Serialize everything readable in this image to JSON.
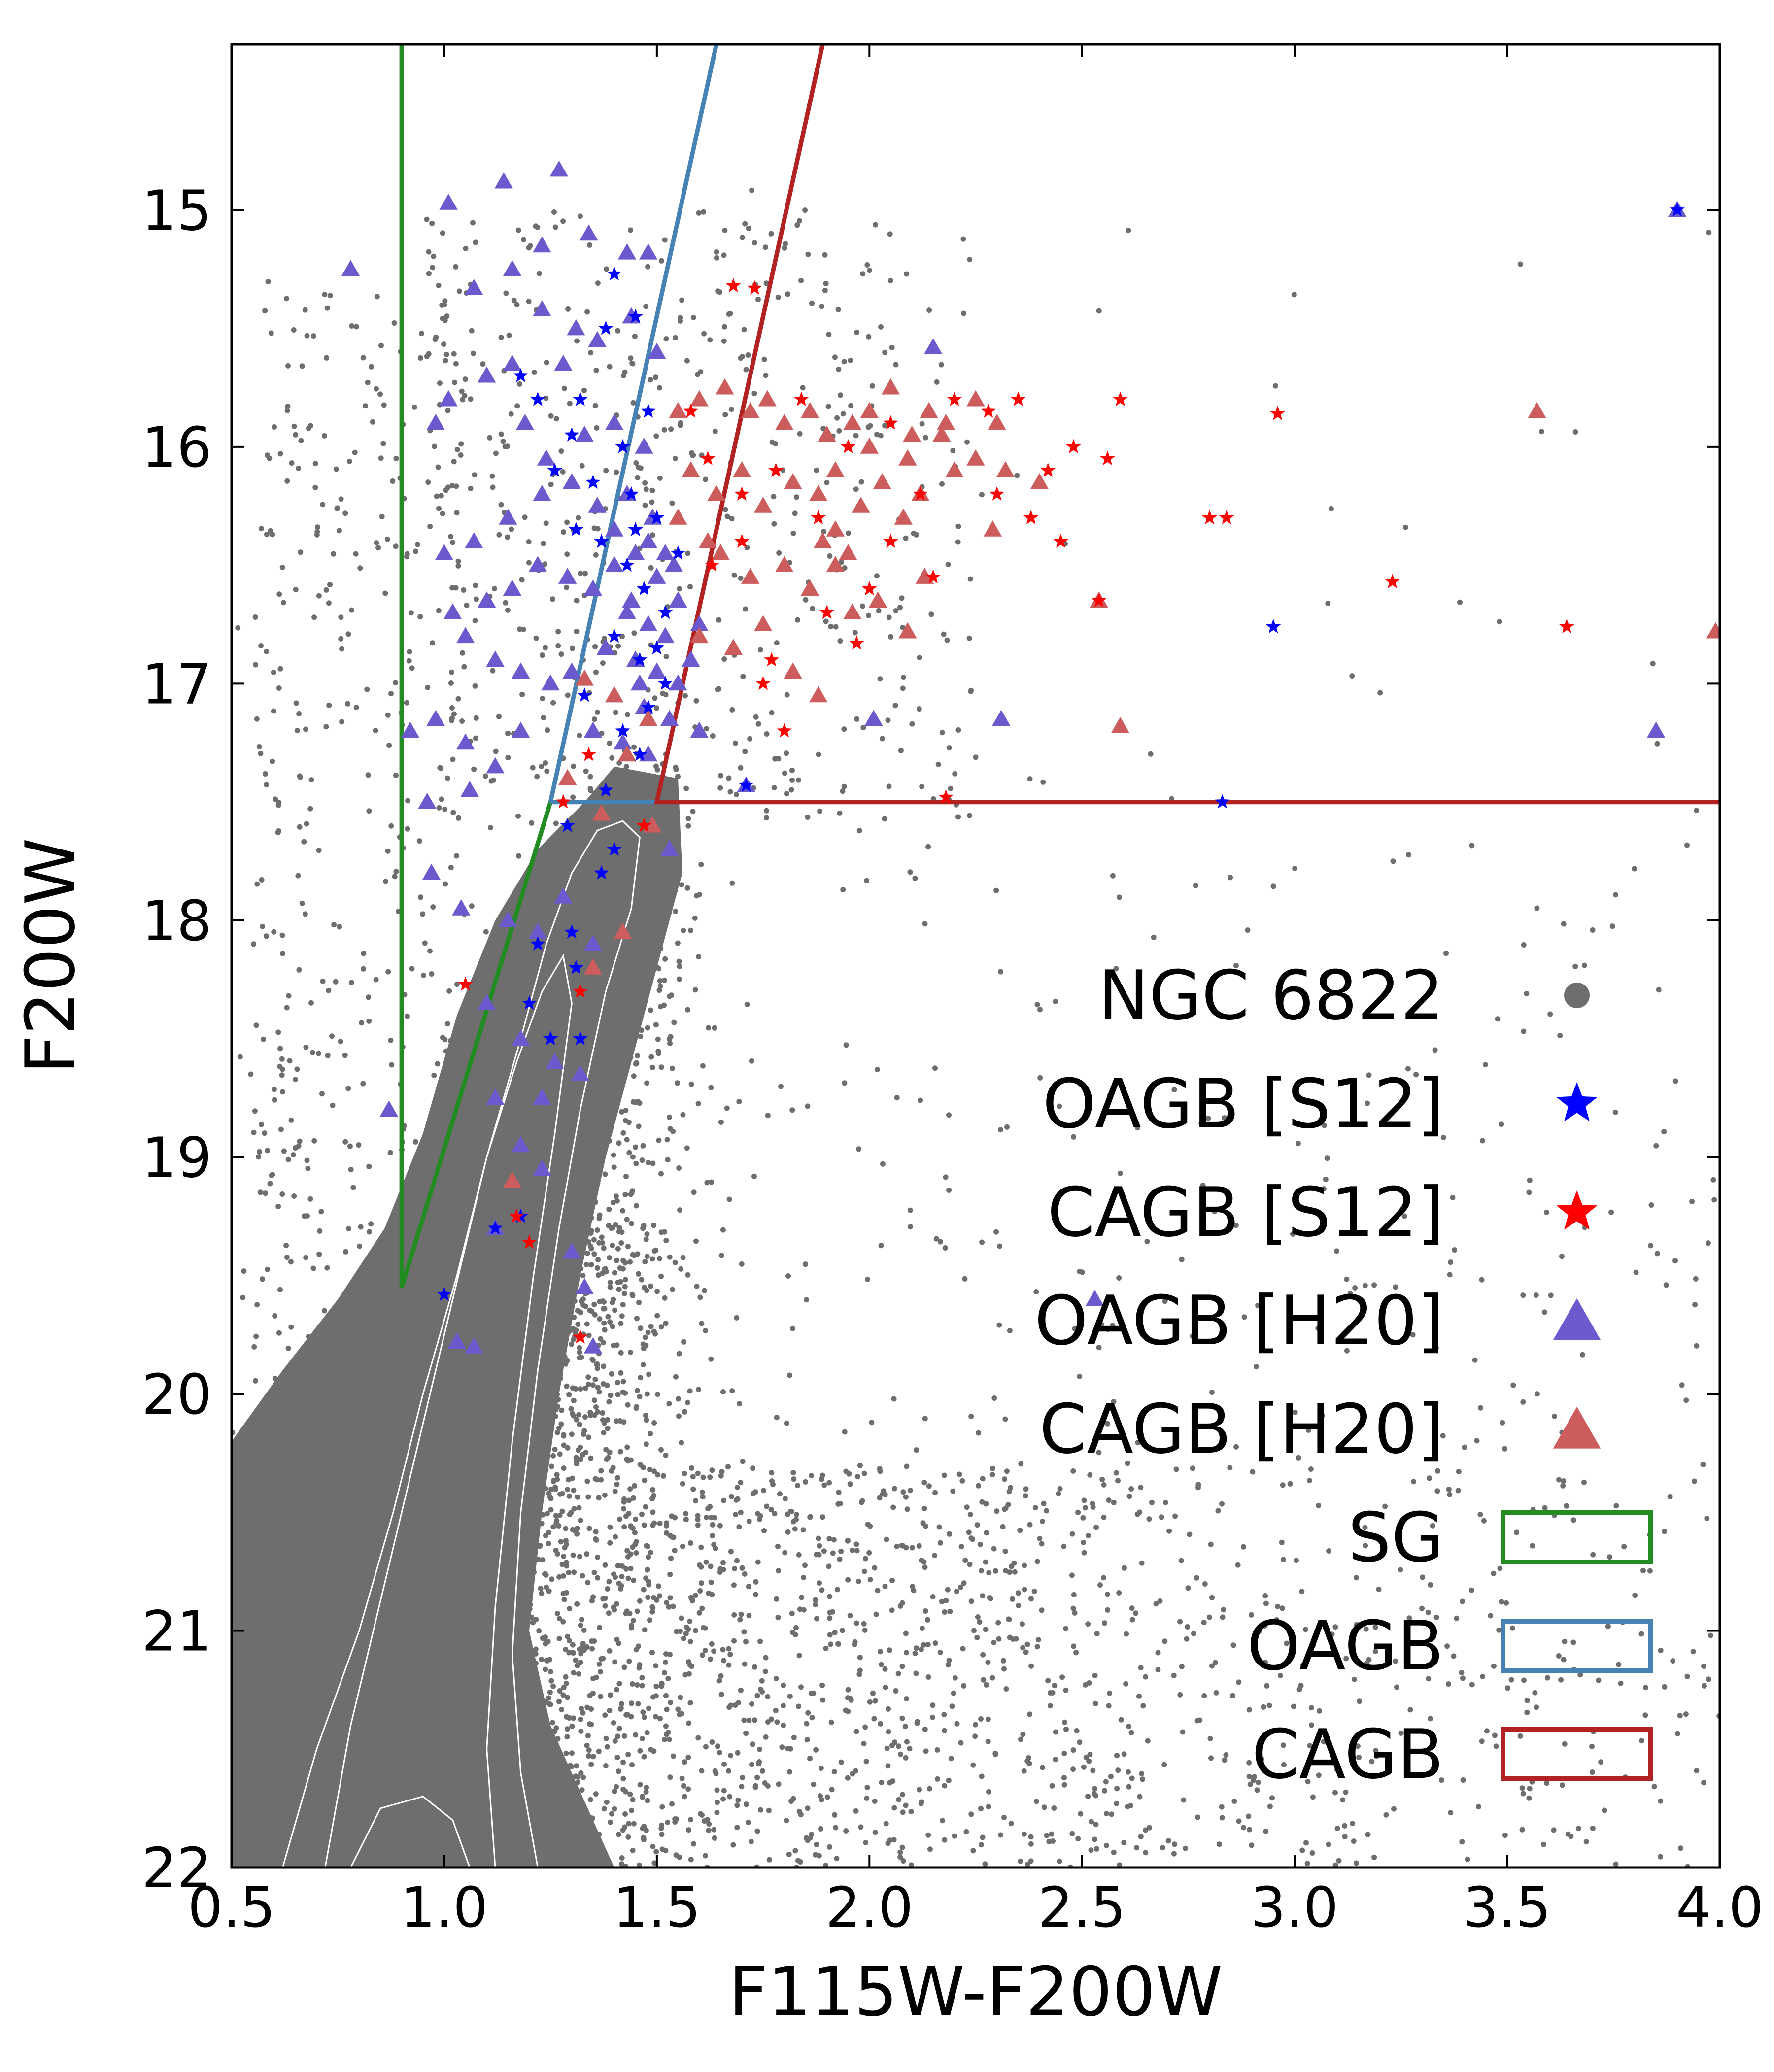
{
  "chart_data": {
    "type": "scatter",
    "title": "",
    "xlabel": "F115W-F200W",
    "ylabel": "F200W",
    "xlim": [
      0.5,
      4.0
    ],
    "ylim": [
      22.0,
      14.3
    ],
    "y_inverted": true,
    "xticks": [
      "0.5",
      "1.0",
      "1.5",
      "2.0",
      "2.5",
      "3.0",
      "3.5",
      "4.0"
    ],
    "yticks": [
      "15",
      "16",
      "17",
      "18",
      "19",
      "20",
      "21",
      "22"
    ],
    "grid": false,
    "legend_position": "lower-right",
    "colors": {
      "ngc": "#6e6e6e",
      "oagb_s12": "#0000ff",
      "cagb_s12": "#ff0000",
      "oagb_h20": "#6a5acd",
      "cagb_h20": "#cd5c5c",
      "sg_box": "#228b22",
      "oagb_box": "#4682b4",
      "cagb_box": "#b22222",
      "contour": "#ffffff"
    },
    "legend": [
      {
        "label": "NGC 6822",
        "marker": "circle",
        "color": "#6e6e6e"
      },
      {
        "label": "OAGB [S12]",
        "marker": "star",
        "color": "#0000ff"
      },
      {
        "label": "CAGB [S12]",
        "marker": "star",
        "color": "#ff0000"
      },
      {
        "label": "OAGB [H20]",
        "marker": "triangle",
        "color": "#6a5acd"
      },
      {
        "label": "CAGB [H20]",
        "marker": "triangle",
        "color": "#cd5c5c"
      },
      {
        "label": "SG",
        "marker": "box",
        "color": "#228b22"
      },
      {
        "label": "OAGB",
        "marker": "box",
        "color": "#4682b4"
      },
      {
        "label": "CAGB",
        "marker": "box",
        "color": "#b22222"
      }
    ],
    "selection_regions": [
      {
        "name": "SG",
        "color": "#228b22",
        "points": [
          [
            0.9,
            14.3
          ],
          [
            0.9,
            19.55
          ],
          [
            1.25,
            17.5
          ]
        ]
      },
      {
        "name": "OAGB",
        "color": "#4682b4",
        "points": [
          [
            1.25,
            17.5
          ],
          [
            1.64,
            14.3
          ]
        ]
      },
      {
        "name": "OAGB-base",
        "color": "#4682b4",
        "points": [
          [
            1.25,
            17.5
          ],
          [
            1.5,
            17.5
          ]
        ]
      },
      {
        "name": "CAGB",
        "color": "#b22222",
        "points": [
          [
            1.89,
            14.3
          ],
          [
            1.5,
            17.5
          ],
          [
            4.0,
            17.5
          ]
        ]
      }
    ],
    "series": [
      {
        "name": "OAGB [S12]",
        "marker": "star",
        "color": "#0000ff",
        "points": [
          [
            1.4,
            15.27
          ],
          [
            1.45,
            15.45
          ],
          [
            1.38,
            15.5
          ],
          [
            1.18,
            15.7
          ],
          [
            1.22,
            15.8
          ],
          [
            1.32,
            15.8
          ],
          [
            1.48,
            15.85
          ],
          [
            1.3,
            15.95
          ],
          [
            1.42,
            16.0
          ],
          [
            1.26,
            16.1
          ],
          [
            1.35,
            16.15
          ],
          [
            1.44,
            16.2
          ],
          [
            1.5,
            16.3
          ],
          [
            1.31,
            16.35
          ],
          [
            1.37,
            16.4
          ],
          [
            1.55,
            16.45
          ],
          [
            1.43,
            16.5
          ],
          [
            1.47,
            16.6
          ],
          [
            1.52,
            16.7
          ],
          [
            1.4,
            16.8
          ],
          [
            1.46,
            16.9
          ],
          [
            1.52,
            17.0
          ],
          [
            1.33,
            17.05
          ],
          [
            1.48,
            17.1
          ],
          [
            1.42,
            17.2
          ],
          [
            1.46,
            17.3
          ],
          [
            1.38,
            17.45
          ],
          [
            1.29,
            17.6
          ],
          [
            1.4,
            17.7
          ],
          [
            1.37,
            17.8
          ],
          [
            1.3,
            18.05
          ],
          [
            1.22,
            18.1
          ],
          [
            1.31,
            18.2
          ],
          [
            1.2,
            18.35
          ],
          [
            1.25,
            18.5
          ],
          [
            1.32,
            18.5
          ],
          [
            1.18,
            19.25
          ],
          [
            1.12,
            19.3
          ],
          [
            1.0,
            19.58
          ],
          [
            1.71,
            17.43
          ],
          [
            2.95,
            16.76
          ],
          [
            3.9,
            15.0
          ],
          [
            2.83,
            17.5
          ],
          [
            1.45,
            16.35
          ],
          [
            1.5,
            16.85
          ]
        ]
      },
      {
        "name": "CAGB [S12]",
        "marker": "star",
        "color": "#ff0000",
        "points": [
          [
            1.68,
            15.32
          ],
          [
            1.73,
            15.33
          ],
          [
            1.58,
            15.85
          ],
          [
            1.62,
            16.05
          ],
          [
            1.7,
            16.2
          ],
          [
            1.78,
            16.1
          ],
          [
            1.84,
            15.8
          ],
          [
            1.95,
            16.0
          ],
          [
            2.05,
            15.9
          ],
          [
            2.12,
            16.2
          ],
          [
            2.2,
            15.8
          ],
          [
            2.28,
            15.85
          ],
          [
            2.35,
            15.8
          ],
          [
            2.42,
            16.1
          ],
          [
            2.48,
            16.0
          ],
          [
            2.56,
            16.05
          ],
          [
            2.59,
            15.8
          ],
          [
            2.38,
            16.3
          ],
          [
            2.45,
            16.4
          ],
          [
            2.54,
            16.65
          ],
          [
            2.8,
            16.3
          ],
          [
            2.84,
            16.3
          ],
          [
            2.96,
            15.86
          ],
          [
            3.23,
            16.57
          ],
          [
            3.64,
            16.76
          ],
          [
            2.15,
            16.55
          ],
          [
            2.18,
            17.48
          ],
          [
            1.97,
            16.83
          ],
          [
            1.9,
            16.7
          ],
          [
            1.77,
            16.9
          ],
          [
            1.8,
            17.2
          ],
          [
            1.75,
            17.0
          ],
          [
            1.63,
            16.5
          ],
          [
            1.7,
            16.4
          ],
          [
            2.05,
            16.4
          ],
          [
            2.0,
            16.6
          ],
          [
            1.34,
            17.3
          ],
          [
            1.28,
            17.5
          ],
          [
            1.47,
            17.6
          ],
          [
            1.32,
            18.3
          ],
          [
            1.05,
            18.27
          ],
          [
            1.17,
            19.25
          ],
          [
            1.2,
            19.36
          ],
          [
            1.32,
            19.76
          ],
          [
            1.88,
            16.3
          ],
          [
            2.3,
            16.2
          ]
        ]
      },
      {
        "name": "OAGB [H20]",
        "marker": "triangle",
        "color": "#6a5acd",
        "points": [
          [
            1.27,
            14.83
          ],
          [
            1.14,
            14.88
          ],
          [
            1.01,
            14.97
          ],
          [
            1.34,
            15.1
          ],
          [
            1.23,
            15.15
          ],
          [
            1.16,
            15.25
          ],
          [
            0.78,
            15.25
          ],
          [
            1.43,
            15.18
          ],
          [
            1.48,
            15.18
          ],
          [
            1.07,
            15.33
          ],
          [
            1.23,
            15.42
          ],
          [
            1.31,
            15.5
          ],
          [
            1.44,
            15.45
          ],
          [
            1.5,
            15.6
          ],
          [
            1.36,
            15.55
          ],
          [
            1.28,
            15.65
          ],
          [
            1.1,
            15.7
          ],
          [
            1.16,
            15.65
          ],
          [
            1.01,
            15.8
          ],
          [
            0.98,
            15.9
          ],
          [
            1.19,
            15.9
          ],
          [
            1.24,
            16.05
          ],
          [
            1.33,
            15.95
          ],
          [
            1.4,
            15.9
          ],
          [
            1.47,
            16.0
          ],
          [
            1.0,
            16.45
          ],
          [
            1.07,
            16.4
          ],
          [
            1.15,
            16.3
          ],
          [
            1.23,
            16.2
          ],
          [
            1.3,
            16.15
          ],
          [
            1.36,
            16.25
          ],
          [
            1.43,
            16.2
          ],
          [
            1.49,
            16.3
          ],
          [
            1.02,
            16.7
          ],
          [
            1.1,
            16.65
          ],
          [
            1.16,
            16.6
          ],
          [
            1.22,
            16.5
          ],
          [
            1.29,
            16.55
          ],
          [
            1.35,
            16.6
          ],
          [
            1.4,
            16.5
          ],
          [
            1.45,
            16.45
          ],
          [
            1.5,
            16.55
          ],
          [
            1.54,
            16.5
          ],
          [
            1.43,
            16.7
          ],
          [
            1.48,
            16.75
          ],
          [
            1.52,
            16.8
          ],
          [
            1.38,
            16.85
          ],
          [
            1.45,
            16.9
          ],
          [
            1.5,
            16.95
          ],
          [
            1.55,
            17.0
          ],
          [
            1.4,
            17.05
          ],
          [
            1.47,
            17.1
          ],
          [
            1.53,
            17.15
          ],
          [
            1.35,
            17.2
          ],
          [
            1.42,
            17.25
          ],
          [
            1.48,
            17.3
          ],
          [
            1.55,
            16.65
          ],
          [
            1.6,
            16.75
          ],
          [
            1.58,
            16.9
          ],
          [
            1.05,
            16.8
          ],
          [
            1.12,
            16.9
          ],
          [
            1.18,
            16.95
          ],
          [
            1.25,
            17.0
          ],
          [
            1.3,
            16.95
          ],
          [
            0.98,
            17.15
          ],
          [
            1.05,
            17.25
          ],
          [
            1.12,
            17.35
          ],
          [
            1.18,
            17.2
          ],
          [
            0.92,
            17.2
          ],
          [
            0.96,
            17.5
          ],
          [
            1.06,
            17.45
          ],
          [
            0.97,
            17.8
          ],
          [
            1.04,
            17.95
          ],
          [
            1.15,
            18.0
          ],
          [
            1.22,
            18.05
          ],
          [
            1.28,
            17.9
          ],
          [
            1.35,
            18.1
          ],
          [
            1.1,
            18.35
          ],
          [
            1.18,
            18.5
          ],
          [
            1.26,
            18.6
          ],
          [
            1.32,
            18.65
          ],
          [
            1.12,
            18.75
          ],
          [
            1.23,
            18.75
          ],
          [
            1.18,
            18.95
          ],
          [
            1.23,
            19.05
          ],
          [
            1.12,
            19.3
          ],
          [
            1.3,
            19.4
          ],
          [
            1.33,
            19.55
          ],
          [
            1.03,
            19.78
          ],
          [
            1.07,
            19.8
          ],
          [
            1.35,
            19.8
          ],
          [
            0.87,
            18.8
          ],
          [
            1.6,
            17.2
          ],
          [
            1.53,
            17.7
          ],
          [
            2.01,
            17.15
          ],
          [
            2.15,
            15.58
          ],
          [
            2.31,
            17.15
          ],
          [
            2.53,
            19.6
          ],
          [
            3.85,
            17.2
          ],
          [
            3.9,
            15.0
          ],
          [
            1.71,
            17.43
          ],
          [
            1.48,
            16.4
          ],
          [
            1.44,
            16.65
          ],
          [
            1.4,
            16.35
          ],
          [
            1.52,
            16.45
          ],
          [
            1.46,
            17.0
          ]
        ]
      },
      {
        "name": "CAGB [H20]",
        "marker": "triangle",
        "color": "#cd5c5c",
        "points": [
          [
            1.55,
            15.85
          ],
          [
            1.6,
            15.8
          ],
          [
            1.66,
            15.75
          ],
          [
            1.72,
            15.85
          ],
          [
            1.76,
            15.8
          ],
          [
            1.8,
            15.9
          ],
          [
            1.86,
            15.85
          ],
          [
            1.9,
            15.95
          ],
          [
            1.96,
            15.9
          ],
          [
            2.0,
            15.85
          ],
          [
            2.05,
            15.75
          ],
          [
            2.1,
            15.95
          ],
          [
            2.14,
            15.85
          ],
          [
            2.18,
            15.9
          ],
          [
            2.25,
            15.8
          ],
          [
            2.3,
            15.9
          ],
          [
            1.58,
            16.1
          ],
          [
            1.64,
            16.2
          ],
          [
            1.7,
            16.1
          ],
          [
            1.75,
            16.25
          ],
          [
            1.82,
            16.15
          ],
          [
            1.88,
            16.2
          ],
          [
            1.92,
            16.35
          ],
          [
            1.98,
            16.25
          ],
          [
            2.03,
            16.15
          ],
          [
            2.08,
            16.3
          ],
          [
            2.12,
            16.2
          ],
          [
            2.2,
            16.1
          ],
          [
            2.25,
            16.05
          ],
          [
            2.32,
            16.1
          ],
          [
            1.65,
            16.45
          ],
          [
            1.72,
            16.55
          ],
          [
            1.8,
            16.5
          ],
          [
            1.86,
            16.6
          ],
          [
            1.92,
            16.5
          ],
          [
            1.96,
            16.7
          ],
          [
            2.02,
            16.65
          ],
          [
            1.6,
            16.8
          ],
          [
            1.68,
            16.85
          ],
          [
            1.75,
            16.75
          ],
          [
            1.82,
            16.95
          ],
          [
            1.88,
            17.05
          ],
          [
            1.33,
            16.98
          ],
          [
            1.4,
            17.05
          ],
          [
            1.48,
            17.15
          ],
          [
            1.29,
            17.4
          ],
          [
            1.37,
            17.55
          ],
          [
            1.43,
            17.3
          ],
          [
            1.49,
            17.6
          ],
          [
            1.42,
            18.05
          ],
          [
            1.35,
            18.2
          ],
          [
            1.16,
            19.1
          ],
          [
            1.92,
            16.1
          ],
          [
            2.0,
            16.0
          ],
          [
            2.09,
            16.05
          ],
          [
            2.17,
            15.95
          ],
          [
            2.29,
            16.35
          ],
          [
            2.09,
            16.78
          ],
          [
            1.89,
            16.4
          ],
          [
            2.4,
            16.15
          ],
          [
            2.54,
            16.65
          ],
          [
            2.59,
            17.18
          ],
          [
            3.57,
            15.85
          ],
          [
            3.99,
            16.78
          ],
          [
            2.13,
            16.55
          ],
          [
            1.55,
            16.3
          ],
          [
            1.62,
            16.4
          ],
          [
            1.95,
            16.45
          ]
        ]
      }
    ],
    "note": "Gray NGC 6822 background points and white density contours are rendered procedurally as a dense field."
  }
}
